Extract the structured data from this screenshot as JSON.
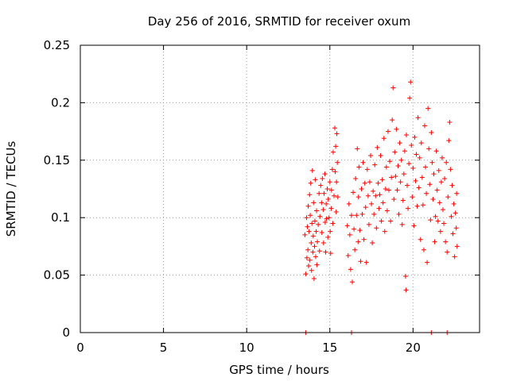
{
  "chart_data": {
    "type": "scatter",
    "title": "Day 256 of 2016, SRMTID for receiver oxum",
    "xlabel": "GPS time / hours",
    "ylabel": "SRMTID / TECUs",
    "xlim": [
      0,
      24
    ],
    "ylim": [
      0,
      0.25
    ],
    "grid": true,
    "marker": "+",
    "color": "#ff0000",
    "x_ticks": [
      {
        "value": 0,
        "label": "0"
      },
      {
        "value": 5,
        "label": "5"
      },
      {
        "value": 10,
        "label": "10"
      },
      {
        "value": 15,
        "label": "15"
      },
      {
        "value": 20,
        "label": "20"
      }
    ],
    "y_ticks": [
      {
        "value": 0,
        "label": "0"
      },
      {
        "value": 0.05,
        "label": "0.05"
      },
      {
        "value": 0.1,
        "label": "0.1"
      },
      {
        "value": 0.15,
        "label": "0.15"
      },
      {
        "value": 0.2,
        "label": "0.2"
      },
      {
        "value": 0.25,
        "label": "0.25"
      }
    ],
    "series": [
      {
        "name": "SRMTID",
        "points": [
          [
            13.55,
            0.0
          ],
          [
            16.3,
            0.0
          ],
          [
            21.1,
            0.0
          ],
          [
            22.05,
            0.0
          ],
          [
            13.5,
            0.085
          ],
          [
            13.55,
            0.051
          ],
          [
            13.6,
            0.1
          ],
          [
            13.62,
            0.065
          ],
          [
            13.65,
            0.092
          ],
          [
            13.68,
            0.072
          ],
          [
            13.7,
            0.11
          ],
          [
            13.72,
            0.058
          ],
          [
            13.75,
            0.088
          ],
          [
            13.78,
            0.12
          ],
          [
            13.8,
            0.063
          ],
          [
            13.82,
            0.102
          ],
          [
            13.85,
            0.13
          ],
          [
            13.88,
            0.078
          ],
          [
            13.9,
            0.054
          ],
          [
            13.92,
            0.095
          ],
          [
            13.95,
            0.141
          ],
          [
            13.98,
            0.07
          ],
          [
            14.0,
            0.084
          ],
          [
            14.02,
            0.113
          ],
          [
            14.05,
            0.047
          ],
          [
            14.08,
            0.075
          ],
          [
            14.1,
            0.097
          ],
          [
            14.12,
            0.133
          ],
          [
            14.15,
            0.066
          ],
          [
            14.18,
            0.088
          ],
          [
            14.2,
            0.106
          ],
          [
            14.22,
            0.059
          ],
          [
            14.25,
            0.079
          ],
          [
            14.3,
            0.094
          ],
          [
            14.35,
            0.121
          ],
          [
            14.38,
            0.071
          ],
          [
            14.4,
            0.101
          ],
          [
            14.45,
            0.128
          ],
          [
            14.5,
            0.113
          ],
          [
            14.52,
            0.087
          ],
          [
            14.55,
            0.134
          ],
          [
            14.6,
            0.107
          ],
          [
            14.62,
            0.078
          ],
          [
            14.65,
            0.121
          ],
          [
            14.7,
            0.138
          ],
          [
            14.72,
            0.096
          ],
          [
            14.75,
            0.07
          ],
          [
            14.78,
            0.112
          ],
          [
            14.8,
            0.099
          ],
          [
            14.85,
            0.125
          ],
          [
            14.88,
            0.083
          ],
          [
            14.9,
            0.116
          ],
          [
            14.95,
            0.1
          ],
          [
            15.0,
            0.131
          ],
          [
            15.02,
            0.088
          ],
          [
            15.05,
            0.069
          ],
          [
            15.08,
            0.108
          ],
          [
            15.1,
            0.124
          ],
          [
            15.15,
            0.142
          ],
          [
            15.18,
            0.095
          ],
          [
            15.2,
            0.157
          ],
          [
            15.25,
            0.119
          ],
          [
            15.3,
            0.178
          ],
          [
            15.32,
            0.14
          ],
          [
            15.35,
            0.162
          ],
          [
            15.38,
            0.105
          ],
          [
            15.4,
            0.131
          ],
          [
            15.42,
            0.173
          ],
          [
            15.45,
            0.148
          ],
          [
            15.48,
            0.118
          ],
          [
            16.05,
            0.093
          ],
          [
            16.1,
            0.067
          ],
          [
            16.15,
            0.112
          ],
          [
            16.2,
            0.085
          ],
          [
            16.25,
            0.055
          ],
          [
            16.3,
            0.102
          ],
          [
            16.35,
            0.044
          ],
          [
            16.4,
            0.122
          ],
          [
            16.45,
            0.09
          ],
          [
            16.5,
            0.072
          ],
          [
            16.55,
            0.134
          ],
          [
            16.6,
            0.102
          ],
          [
            16.65,
            0.16
          ],
          [
            16.7,
            0.079
          ],
          [
            16.72,
            0.118
          ],
          [
            16.75,
            0.144
          ],
          [
            16.8,
            0.089
          ],
          [
            16.85,
            0.062
          ],
          [
            16.9,
            0.125
          ],
          [
            16.95,
            0.103
          ],
          [
            17.0,
            0.148
          ],
          [
            17.05,
            0.081
          ],
          [
            17.1,
            0.13
          ],
          [
            17.15,
            0.109
          ],
          [
            17.2,
            0.061
          ],
          [
            17.25,
            0.142
          ],
          [
            17.3,
            0.119
          ],
          [
            17.35,
            0.094
          ],
          [
            17.4,
            0.131
          ],
          [
            17.45,
            0.154
          ],
          [
            17.5,
            0.112
          ],
          [
            17.55,
            0.078
          ],
          [
            17.6,
            0.123
          ],
          [
            17.65,
            0.103
          ],
          [
            17.7,
            0.146
          ],
          [
            17.75,
            0.119
          ],
          [
            17.8,
            0.091
          ],
          [
            17.85,
            0.161
          ],
          [
            17.9,
            0.13
          ],
          [
            17.95,
            0.108
          ],
          [
            18.0,
            0.12
          ],
          [
            18.05,
            0.154
          ],
          [
            18.1,
            0.097
          ],
          [
            18.15,
            0.133
          ],
          [
            18.2,
            0.113
          ],
          [
            18.25,
            0.169
          ],
          [
            18.3,
            0.088
          ],
          [
            18.35,
            0.125
          ],
          [
            18.4,
            0.144
          ],
          [
            18.45,
            0.106
          ],
          [
            18.5,
            0.175
          ],
          [
            18.55,
            0.124
          ],
          [
            18.6,
            0.149
          ],
          [
            18.65,
            0.097
          ],
          [
            18.7,
            0.135
          ],
          [
            18.75,
            0.185
          ],
          [
            18.8,
            0.213
          ],
          [
            18.85,
            0.116
          ],
          [
            18.9,
            0.157
          ],
          [
            18.95,
            0.136
          ],
          [
            19.0,
            0.177
          ],
          [
            19.05,
            0.124
          ],
          [
            19.1,
            0.145
          ],
          [
            19.15,
            0.103
          ],
          [
            19.2,
            0.165
          ],
          [
            19.25,
            0.131
          ],
          [
            19.3,
            0.15
          ],
          [
            19.35,
            0.094
          ],
          [
            19.4,
            0.115
          ],
          [
            19.45,
            0.138
          ],
          [
            19.5,
            0.158
          ],
          [
            19.55,
            0.049
          ],
          [
            19.58,
            0.037
          ],
          [
            19.6,
            0.172
          ],
          [
            19.65,
            0.128
          ],
          [
            19.7,
            0.108
          ],
          [
            19.75,
            0.147
          ],
          [
            19.8,
            0.204
          ],
          [
            19.85,
            0.218
          ],
          [
            19.9,
            0.163
          ],
          [
            19.95,
            0.118
          ],
          [
            20.0,
            0.143
          ],
          [
            20.05,
            0.093
          ],
          [
            20.1,
            0.17
          ],
          [
            20.15,
            0.132
          ],
          [
            20.2,
            0.155
          ],
          [
            20.25,
            0.11
          ],
          [
            20.3,
            0.187
          ],
          [
            20.35,
            0.126
          ],
          [
            20.4,
            0.152
          ],
          [
            20.45,
            0.081
          ],
          [
            20.5,
            0.165
          ],
          [
            20.55,
            0.135
          ],
          [
            20.6,
            0.111
          ],
          [
            20.65,
            0.072
          ],
          [
            20.7,
            0.18
          ],
          [
            20.75,
            0.144
          ],
          [
            20.8,
            0.121
          ],
          [
            20.85,
            0.061
          ],
          [
            20.9,
            0.195
          ],
          [
            20.95,
            0.16
          ],
          [
            21.0,
            0.129
          ],
          [
            21.05,
            0.098
          ],
          [
            21.1,
            0.174
          ],
          [
            21.15,
            0.148
          ],
          [
            21.2,
            0.116
          ],
          [
            21.25,
            0.138
          ],
          [
            21.3,
            0.079
          ],
          [
            21.35,
            0.101
          ],
          [
            21.4,
            0.158
          ],
          [
            21.45,
            0.124
          ],
          [
            21.5,
            0.097
          ],
          [
            21.55,
            0.141
          ],
          [
            21.6,
            0.113
          ],
          [
            21.65,
            0.088
          ],
          [
            21.7,
            0.131
          ],
          [
            21.75,
            0.152
          ],
          [
            21.8,
            0.107
          ],
          [
            21.85,
            0.095
          ],
          [
            21.9,
            0.134
          ],
          [
            21.95,
            0.079
          ],
          [
            22.0,
            0.148
          ],
          [
            22.05,
            0.07
          ],
          [
            22.1,
            0.118
          ],
          [
            22.15,
            0.167
          ],
          [
            22.2,
            0.183
          ],
          [
            22.25,
            0.142
          ],
          [
            22.3,
            0.101
          ],
          [
            22.35,
            0.128
          ],
          [
            22.4,
            0.086
          ],
          [
            22.45,
            0.112
          ],
          [
            22.5,
            0.066
          ],
          [
            22.55,
            0.104
          ],
          [
            22.6,
            0.091
          ],
          [
            22.62,
            0.121
          ],
          [
            22.65,
            0.075
          ]
        ]
      }
    ]
  }
}
